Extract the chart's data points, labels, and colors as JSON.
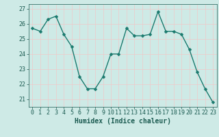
{
  "x": [
    0,
    1,
    2,
    3,
    4,
    5,
    6,
    7,
    8,
    9,
    10,
    11,
    12,
    13,
    14,
    15,
    16,
    17,
    18,
    19,
    20,
    21,
    22,
    23
  ],
  "y": [
    25.7,
    25.5,
    26.3,
    26.5,
    25.3,
    24.5,
    22.5,
    21.7,
    21.7,
    22.5,
    24.0,
    24.0,
    25.7,
    25.2,
    25.2,
    25.3,
    26.8,
    25.5,
    25.5,
    25.3,
    24.3,
    22.8,
    21.7,
    20.8
  ],
  "line_color": "#1a7a6e",
  "marker": "D",
  "marker_size": 2.5,
  "linewidth": 1.0,
  "xlabel": "Humidex (Indice chaleur)",
  "xlabel_fontsize": 7,
  "xlabel_color": "#1a5a50",
  "xtick_labels": [
    "0",
    "1",
    "2",
    "3",
    "4",
    "5",
    "6",
    "7",
    "8",
    "9",
    "10",
    "11",
    "12",
    "13",
    "14",
    "15",
    "16",
    "17",
    "18",
    "19",
    "20",
    "21",
    "22",
    "23"
  ],
  "ytick_start": 21,
  "ytick_end": 27,
  "ytick_step": 1,
  "ylim": [
    20.5,
    27.3
  ],
  "xlim": [
    -0.5,
    23.5
  ],
  "background_color": "#ceeae6",
  "grid_color": "#f0c8c8",
  "tick_fontsize": 6,
  "tick_color": "#1a5a50"
}
